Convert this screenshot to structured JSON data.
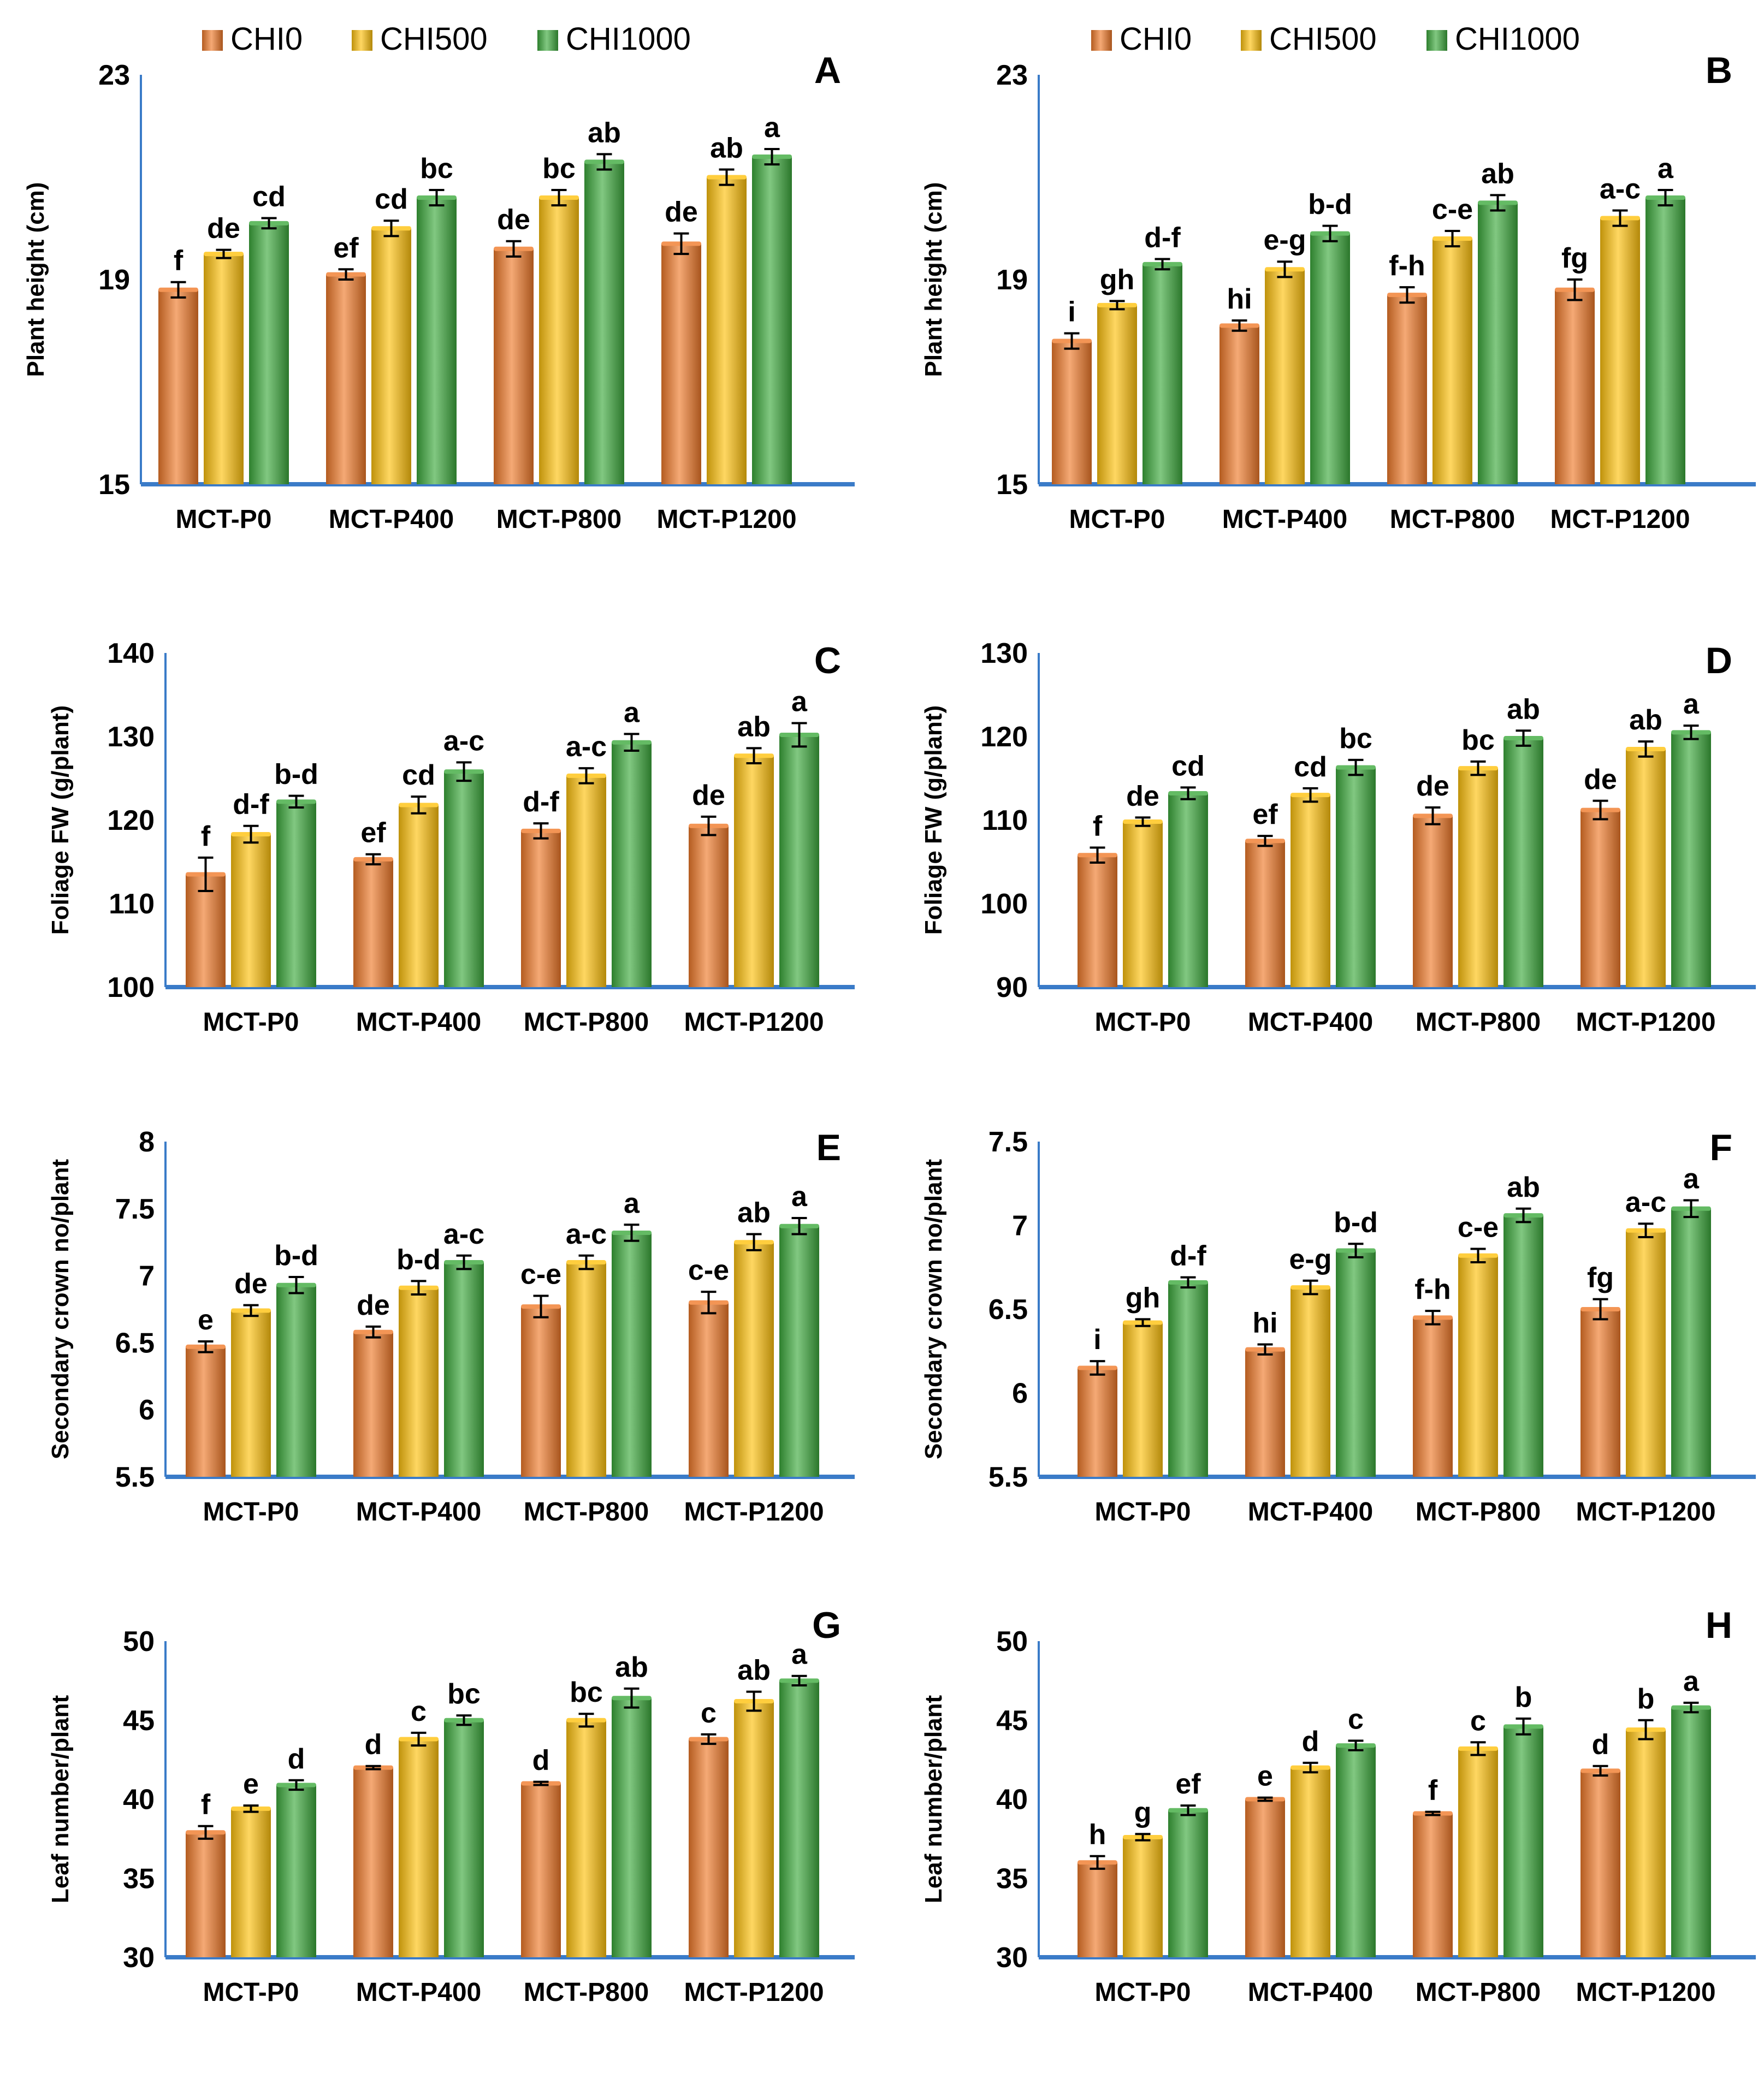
{
  "legend": [
    {
      "name": "CHI0",
      "color": "#F07A2A"
    },
    {
      "name": "CHI500",
      "color": "#FFC20E"
    },
    {
      "name": "CHI1000",
      "color": "#3DAA3D"
    }
  ],
  "colors": {
    "axis": "#3A7BC8",
    "text": "#000000"
  },
  "chart_data": [
    {
      "panel": "A",
      "type": "bar",
      "ylabel": "Plant height (cm)",
      "ylim": [
        15,
        23
      ],
      "yticks": [
        15,
        19,
        23
      ],
      "categories": [
        "MCT-P0",
        "MCT-P400",
        "MCT-P800",
        "MCT-P1200"
      ],
      "series": [
        {
          "name": "CHI0",
          "values": [
            18.8,
            19.1,
            19.6,
            19.7
          ],
          "errors": [
            0.15,
            0.1,
            0.15,
            0.2
          ],
          "letters": [
            "f",
            "ef",
            "de",
            "de"
          ]
        },
        {
          "name": "CHI500",
          "values": [
            19.5,
            20.0,
            20.6,
            21.0
          ],
          "errors": [
            0.08,
            0.15,
            0.15,
            0.15
          ],
          "letters": [
            "de",
            "cd",
            "bc",
            "ab"
          ]
        },
        {
          "name": "CHI1000",
          "values": [
            20.1,
            20.6,
            21.3,
            21.4
          ],
          "errors": [
            0.1,
            0.15,
            0.15,
            0.15
          ],
          "letters": [
            "cd",
            "bc",
            "ab",
            "a"
          ]
        }
      ]
    },
    {
      "panel": "B",
      "type": "bar",
      "ylabel": "Plant height (cm)",
      "ylim": [
        15,
        23
      ],
      "yticks": [
        15,
        19,
        23
      ],
      "categories": [
        "MCT-P0",
        "MCT-P400",
        "MCT-P800",
        "MCT-P1200"
      ],
      "series": [
        {
          "name": "CHI0",
          "values": [
            17.8,
            18.1,
            18.7,
            18.8
          ],
          "errors": [
            0.15,
            0.1,
            0.15,
            0.2
          ],
          "letters": [
            "i",
            "hi",
            "f-h",
            "fg"
          ]
        },
        {
          "name": "CHI500",
          "values": [
            18.5,
            19.2,
            19.8,
            20.2
          ],
          "errors": [
            0.08,
            0.15,
            0.15,
            0.15
          ],
          "letters": [
            "gh",
            "e-g",
            "c-e",
            "a-c"
          ]
        },
        {
          "name": "CHI1000",
          "values": [
            19.3,
            19.9,
            20.5,
            20.6
          ],
          "errors": [
            0.1,
            0.15,
            0.15,
            0.15
          ],
          "letters": [
            "d-f",
            "b-d",
            "ab",
            "a"
          ]
        }
      ]
    },
    {
      "panel": "C",
      "type": "bar",
      "ylabel": "Foliage FW (g/plant)",
      "ylim": [
        100,
        140
      ],
      "yticks": [
        100,
        110,
        120,
        130,
        140
      ],
      "categories": [
        "MCT-P0",
        "MCT-P400",
        "MCT-P800",
        "MCT-P1200"
      ],
      "series": [
        {
          "name": "CHI0",
          "values": [
            113.5,
            115.3,
            118.7,
            119.3
          ],
          "errors": [
            2.0,
            0.6,
            0.9,
            1.1
          ],
          "letters": [
            "f",
            "ef",
            "d-f",
            "de"
          ]
        },
        {
          "name": "CHI500",
          "values": [
            118.3,
            121.8,
            125.3,
            127.7
          ],
          "errors": [
            1.0,
            1.0,
            0.9,
            0.9
          ],
          "letters": [
            "d-f",
            "cd",
            "a-c",
            "ab"
          ]
        },
        {
          "name": "CHI1000",
          "values": [
            122.2,
            125.8,
            129.3,
            130.2
          ],
          "errors": [
            0.7,
            1.1,
            1.0,
            1.4
          ],
          "letters": [
            "b-d",
            "a-c",
            "a",
            "a"
          ]
        }
      ]
    },
    {
      "panel": "D",
      "type": "bar",
      "ylabel": "Foliage FW (g/plant)",
      "ylim": [
        90,
        130
      ],
      "yticks": [
        90,
        100,
        110,
        120,
        130
      ],
      "categories": [
        "MCT-P0",
        "MCT-P400",
        "MCT-P800",
        "MCT-P1200"
      ],
      "series": [
        {
          "name": "CHI0",
          "values": [
            105.8,
            107.5,
            110.5,
            111.2
          ],
          "errors": [
            0.9,
            0.6,
            1.0,
            1.1
          ],
          "letters": [
            "f",
            "ef",
            "de",
            "de"
          ]
        },
        {
          "name": "CHI500",
          "values": [
            109.8,
            113.0,
            116.2,
            118.5
          ],
          "errors": [
            0.5,
            0.8,
            0.8,
            0.9
          ],
          "letters": [
            "de",
            "cd",
            "bc",
            "ab"
          ]
        },
        {
          "name": "CHI1000",
          "values": [
            113.2,
            116.3,
            119.8,
            120.5
          ],
          "errors": [
            0.7,
            0.9,
            0.9,
            0.8
          ],
          "letters": [
            "cd",
            "bc",
            "ab",
            "a"
          ]
        }
      ]
    },
    {
      "panel": "E",
      "type": "bar",
      "ylabel": "Secondary crown no/plant",
      "ylim": [
        5.5,
        8
      ],
      "yticks": [
        5.5,
        6,
        6.5,
        7,
        7.5,
        8
      ],
      "categories": [
        "MCT-P0",
        "MCT-P400",
        "MCT-P800",
        "MCT-P1200"
      ],
      "series": [
        {
          "name": "CHI0",
          "values": [
            6.47,
            6.58,
            6.77,
            6.8
          ],
          "errors": [
            0.04,
            0.04,
            0.08,
            0.08
          ],
          "letters": [
            "e",
            "de",
            "c-e",
            "c-e"
          ]
        },
        {
          "name": "CHI500",
          "values": [
            6.74,
            6.91,
            7.1,
            7.25
          ],
          "errors": [
            0.04,
            0.05,
            0.05,
            0.06
          ],
          "letters": [
            "de",
            "b-d",
            "a-c",
            "ab"
          ]
        },
        {
          "name": "CHI1000",
          "values": [
            6.93,
            7.1,
            7.32,
            7.37
          ],
          "errors": [
            0.06,
            0.05,
            0.06,
            0.06
          ],
          "letters": [
            "b-d",
            "a-c",
            "a",
            "a"
          ]
        }
      ]
    },
    {
      "panel": "F",
      "type": "bar",
      "ylabel": "Secondary crown no/plant",
      "ylim": [
        5.5,
        7.5
      ],
      "yticks": [
        5.5,
        6,
        6.5,
        7,
        7.5
      ],
      "categories": [
        "MCT-P0",
        "MCT-P400",
        "MCT-P800",
        "MCT-P1200"
      ],
      "series": [
        {
          "name": "CHI0",
          "values": [
            6.15,
            6.26,
            6.45,
            6.5
          ],
          "errors": [
            0.04,
            0.03,
            0.04,
            0.06
          ],
          "letters": [
            "i",
            "hi",
            "f-h",
            "fg"
          ]
        },
        {
          "name": "CHI500",
          "values": [
            6.42,
            6.63,
            6.82,
            6.97
          ],
          "errors": [
            0.02,
            0.04,
            0.04,
            0.04
          ],
          "letters": [
            "gh",
            "e-g",
            "c-e",
            "a-c"
          ]
        },
        {
          "name": "CHI1000",
          "values": [
            6.66,
            6.85,
            7.06,
            7.1
          ],
          "errors": [
            0.03,
            0.04,
            0.04,
            0.05
          ],
          "letters": [
            "d-f",
            "b-d",
            "ab",
            "a"
          ]
        }
      ]
    },
    {
      "panel": "G",
      "type": "bar",
      "ylabel": "Leaf number/plant",
      "ylim": [
        30,
        50
      ],
      "yticks": [
        30,
        35,
        40,
        45,
        50
      ],
      "categories": [
        "MCT-P0",
        "MCT-P400",
        "MCT-P800",
        "MCT-P1200"
      ],
      "series": [
        {
          "name": "CHI0",
          "values": [
            37.9,
            42.0,
            41.0,
            43.8
          ],
          "errors": [
            0.4,
            0.1,
            0.1,
            0.3
          ],
          "letters": [
            "f",
            "d",
            "d",
            "c"
          ]
        },
        {
          "name": "CHI500",
          "values": [
            39.4,
            43.8,
            45.0,
            46.2
          ],
          "errors": [
            0.2,
            0.4,
            0.4,
            0.6
          ],
          "letters": [
            "e",
            "c",
            "bc",
            "ab"
          ]
        },
        {
          "name": "CHI1000",
          "values": [
            40.9,
            45.0,
            46.4,
            47.5
          ],
          "errors": [
            0.3,
            0.3,
            0.6,
            0.3
          ],
          "letters": [
            "d",
            "bc",
            "ab",
            "a"
          ]
        }
      ]
    },
    {
      "panel": "H",
      "type": "bar",
      "ylabel": "Leaf number/plant",
      "ylim": [
        30,
        50
      ],
      "yticks": [
        30,
        35,
        40,
        45,
        50
      ],
      "categories": [
        "MCT-P0",
        "MCT-P400",
        "MCT-P800",
        "MCT-P1200"
      ],
      "series": [
        {
          "name": "CHI0",
          "values": [
            36.0,
            40.0,
            39.1,
            41.8
          ],
          "errors": [
            0.4,
            0.1,
            0.1,
            0.3
          ],
          "letters": [
            "h",
            "e",
            "f",
            "d"
          ]
        },
        {
          "name": "CHI500",
          "values": [
            37.6,
            42.0,
            43.2,
            44.4
          ],
          "errors": [
            0.2,
            0.3,
            0.4,
            0.6
          ],
          "letters": [
            "g",
            "d",
            "c",
            "b"
          ]
        },
        {
          "name": "CHI1000",
          "values": [
            39.3,
            43.4,
            44.6,
            45.8
          ],
          "errors": [
            0.3,
            0.3,
            0.5,
            0.3
          ],
          "letters": [
            "ef",
            "c",
            "b",
            "a"
          ]
        }
      ]
    }
  ]
}
